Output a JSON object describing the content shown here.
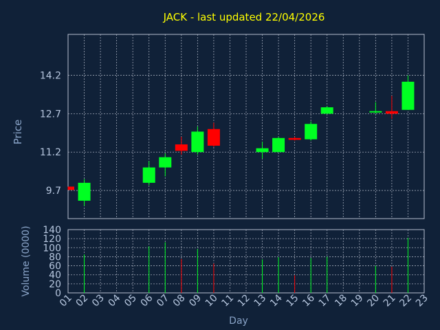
{
  "chart_data": [
    {
      "type": "candlestick",
      "title": "JACK - last updated 22/04/2026",
      "ylabel": "Price",
      "ylim": [
        8.6,
        15.8
      ],
      "yticks": [
        9.7,
        11.2,
        12.7,
        14.2
      ],
      "ytick_labels": [
        "9.7",
        "11.2",
        "12.7",
        "14.2"
      ],
      "grid": true,
      "up_color": "#00ff22",
      "down_color": "#ff0000",
      "candles": [
        {
          "day": 1,
          "open": 9.85,
          "high": 9.85,
          "low": 9.72,
          "close": 9.72
        },
        {
          "day": 2,
          "open": 9.3,
          "high": 10.15,
          "low": 9.1,
          "close": 10.0
        },
        {
          "day": 6,
          "open": 10.0,
          "high": 10.85,
          "low": 9.9,
          "close": 10.6
        },
        {
          "day": 7,
          "open": 10.6,
          "high": 11.15,
          "low": 10.25,
          "close": 11.0
        },
        {
          "day": 8,
          "open": 11.5,
          "high": 11.8,
          "low": 11.1,
          "close": 11.25
        },
        {
          "day": 9,
          "open": 11.2,
          "high": 12.2,
          "low": 11.1,
          "close": 12.0
        },
        {
          "day": 10,
          "open": 12.1,
          "high": 12.35,
          "low": 11.4,
          "close": 11.45
        },
        {
          "day": 13,
          "open": 11.2,
          "high": 11.6,
          "low": 10.95,
          "close": 11.35
        },
        {
          "day": 14,
          "open": 11.2,
          "high": 11.8,
          "low": 11.2,
          "close": 11.75
        },
        {
          "day": 15,
          "open": 11.75,
          "high": 11.8,
          "low": 11.65,
          "close": 11.68
        },
        {
          "day": 16,
          "open": 11.7,
          "high": 12.4,
          "low": 11.65,
          "close": 12.3
        },
        {
          "day": 17,
          "open": 12.7,
          "high": 13.0,
          "low": 12.7,
          "close": 12.95
        },
        {
          "day": 20,
          "open": 12.75,
          "high": 13.15,
          "low": 12.7,
          "close": 12.8
        },
        {
          "day": 21,
          "open": 12.8,
          "high": 13.4,
          "low": 12.5,
          "close": 12.7
        },
        {
          "day": 22,
          "open": 12.85,
          "high": 14.2,
          "low": 12.85,
          "close": 13.95
        }
      ]
    },
    {
      "type": "bar",
      "xlabel": "Day",
      "ylabel": "Volume (0000)",
      "ylim": [
        0,
        140
      ],
      "yticks": [
        0,
        20,
        40,
        60,
        80,
        100,
        120,
        140
      ],
      "ytick_labels": [
        "0",
        "20",
        "40",
        "60",
        "80",
        "100",
        "120",
        "140"
      ],
      "xtick_labels": [
        "01",
        "02",
        "03",
        "04",
        "05",
        "06",
        "07",
        "08",
        "09",
        "10",
        "11",
        "12",
        "13",
        "14",
        "15",
        "16",
        "17",
        "18",
        "19",
        "20",
        "21",
        "22",
        "23"
      ],
      "x": [
        1,
        2,
        6,
        7,
        8,
        9,
        10,
        13,
        14,
        15,
        16,
        17,
        20,
        21,
        22
      ],
      "values": [
        0,
        85,
        103,
        112,
        75,
        97,
        65,
        74,
        79,
        39,
        77,
        80,
        60,
        58,
        122
      ],
      "colors": [
        "#ff0000",
        "#00ff22",
        "#00ff22",
        "#00ff22",
        "#ff0000",
        "#00ff22",
        "#ff0000",
        "#00ff22",
        "#00ff22",
        "#ff0000",
        "#00ff22",
        "#00ff22",
        "#00ff22",
        "#ff0000",
        "#00ff22"
      ]
    }
  ],
  "colors": {
    "background": "#102138",
    "title": "#ffff00",
    "axis_text": "#8aa4c8",
    "tick_text": "#b8c8e0",
    "grid": "#a0a8b8",
    "frame": "#b8c0d0"
  }
}
